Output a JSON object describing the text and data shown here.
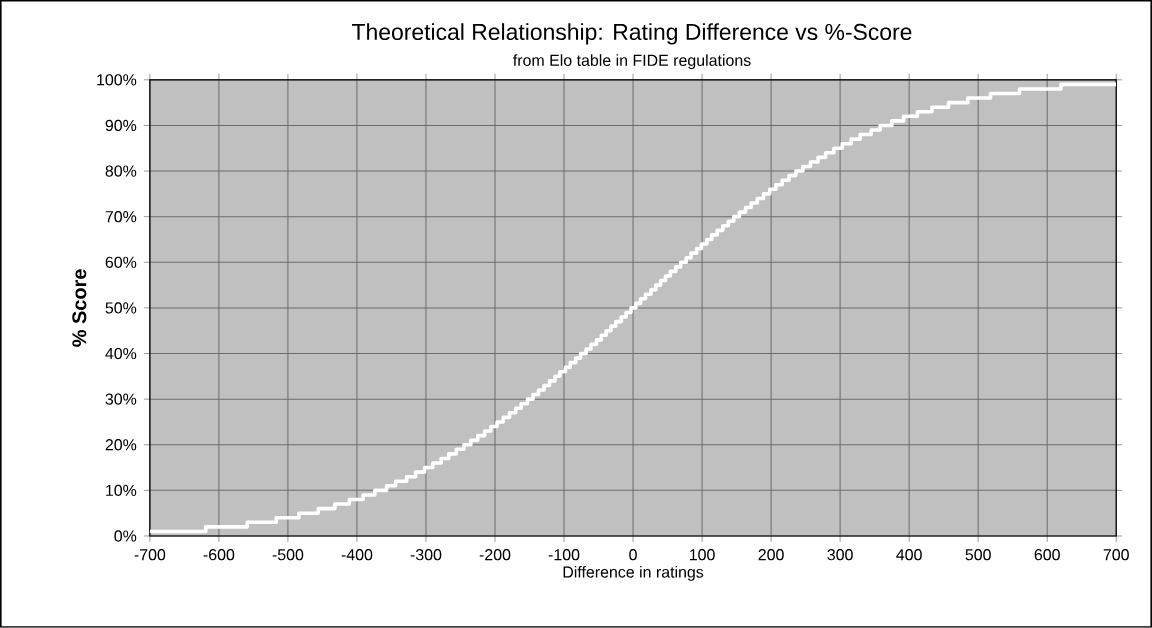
{
  "chart_data": {
    "type": "step",
    "title": "Theoretical Relationship: Rating Difference vs %-Score",
    "subtitle": "from Elo table in FIDE regulations",
    "xlabel": "Difference in ratings",
    "ylabel": "% Score",
    "series": [
      {
        "color": "#ffffff",
        "x": [
          -700,
          -619,
          -559,
          -517,
          -484,
          -456,
          -432,
          -411,
          -391,
          -374,
          -357,
          -344,
          -328,
          -315,
          -302,
          -290,
          -278,
          -267,
          -256,
          -245,
          -235,
          -225,
          -215,
          -206,
          -197,
          -188,
          -179,
          -170,
          -162,
          -153,
          -145,
          -137,
          -129,
          -121,
          -113,
          -106,
          -98,
          -91,
          -83,
          -76,
          -68,
          -61,
          -53,
          -46,
          -39,
          -32,
          -25,
          -17,
          -10,
          -3,
          4,
          11,
          18,
          26,
          33,
          40,
          47,
          54,
          62,
          69,
          77,
          84,
          92,
          99,
          107,
          114,
          122,
          130,
          138,
          146,
          154,
          163,
          171,
          180,
          189,
          198,
          207,
          216,
          226,
          236,
          246,
          257,
          268,
          279,
          291,
          303,
          316,
          329,
          345,
          358,
          375,
          392,
          412,
          433,
          457,
          485,
          518,
          560,
          620,
          700
        ],
        "values": [
          1,
          2,
          3,
          4,
          5,
          6,
          7,
          8,
          9,
          10,
          11,
          12,
          13,
          14,
          15,
          16,
          17,
          18,
          19,
          20,
          21,
          22,
          23,
          24,
          25,
          26,
          27,
          28,
          29,
          30,
          31,
          32,
          33,
          34,
          35,
          36,
          37,
          38,
          39,
          40,
          41,
          42,
          43,
          44,
          45,
          46,
          47,
          48,
          49,
          50,
          51,
          52,
          53,
          54,
          55,
          56,
          57,
          58,
          59,
          60,
          61,
          62,
          63,
          64,
          65,
          66,
          67,
          68,
          69,
          70,
          71,
          72,
          73,
          74,
          75,
          76,
          77,
          78,
          79,
          80,
          81,
          82,
          83,
          84,
          85,
          86,
          87,
          88,
          89,
          90,
          91,
          92,
          93,
          94,
          95,
          96,
          97,
          98,
          99,
          99
        ]
      }
    ],
    "xlim": [
      -700,
      700
    ],
    "xticks": [
      -700,
      -600,
      -500,
      -400,
      -300,
      -200,
      -100,
      0,
      100,
      200,
      300,
      400,
      500,
      600,
      700
    ],
    "ylim": [
      0,
      100
    ],
    "yticks": [
      {
        "value": 0,
        "label": "0%"
      },
      {
        "value": 10,
        "label": "10%"
      },
      {
        "value": 20,
        "label": "20%"
      },
      {
        "value": 30,
        "label": "30%"
      },
      {
        "value": 40,
        "label": "40%"
      },
      {
        "value": 50,
        "label": "50%"
      },
      {
        "value": 60,
        "label": "60%"
      },
      {
        "value": 70,
        "label": "70%"
      },
      {
        "value": 80,
        "label": "80%"
      },
      {
        "value": 90,
        "label": "90%"
      },
      {
        "value": 100,
        "label": "100%"
      }
    ],
    "grid": true,
    "marker": "none",
    "line_style": "solid"
  }
}
